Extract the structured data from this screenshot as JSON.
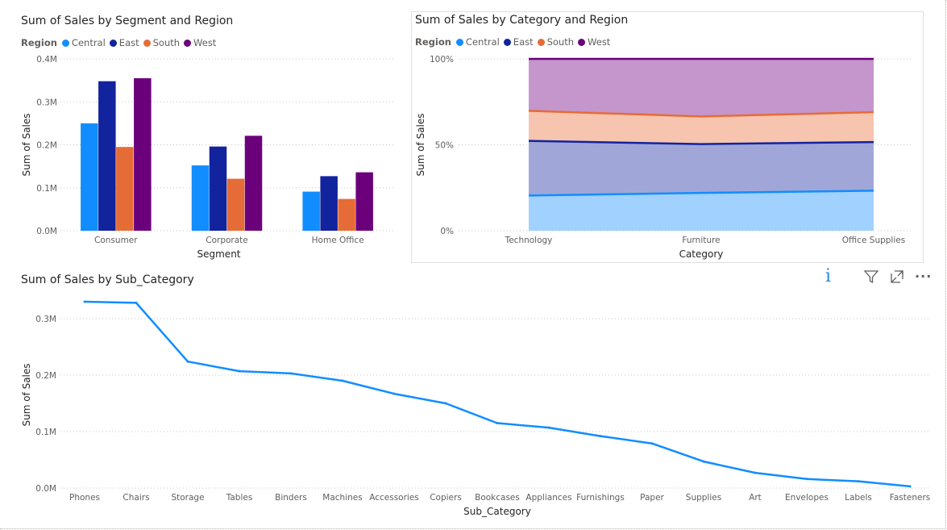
{
  "colors": {
    "central": "#118DFF",
    "east": "#12239E",
    "south": "#E66C37",
    "west": "#6B007B",
    "central_area": "#A0D1FF",
    "east_area": "#A0A7D8",
    "south_area": "#F6C4AF",
    "west_area": "#C496CB",
    "grid": "#c8c6c4"
  },
  "legend": {
    "title": "Region",
    "items": [
      "Central",
      "East",
      "South",
      "West"
    ]
  },
  "header": {
    "icons": [
      "info-icon",
      "filter-icon",
      "focus-mode-icon",
      "more-options-icon"
    ],
    "info_glyph": "i",
    "more_glyph": "···"
  },
  "chart_data": [
    {
      "type": "bar",
      "title": "Sum of Sales by Segment and Region",
      "xlabel": "Segment",
      "ylabel": "Sum of Sales",
      "categories": [
        "Consumer",
        "Corporate",
        "Home Office"
      ],
      "ylim": [
        0,
        0.4
      ],
      "yticks": [
        0,
        0.1,
        0.2,
        0.3,
        0.4
      ],
      "ytick_labels": [
        "0.0M",
        "0.1M",
        "0.2M",
        "0.3M",
        "0.4M"
      ],
      "legend_position": "top-left",
      "grid": true,
      "series": [
        {
          "name": "Central",
          "values": [
            0.25,
            0.152,
            0.091
          ]
        },
        {
          "name": "East",
          "values": [
            0.348,
            0.196,
            0.127
          ]
        },
        {
          "name": "South",
          "values": [
            0.195,
            0.121,
            0.074
          ]
        },
        {
          "name": "West",
          "values": [
            0.355,
            0.221,
            0.136
          ]
        }
      ]
    },
    {
      "type": "area",
      "stacking": "percent",
      "title": "Sum of Sales by Category and Region",
      "xlabel": "Category",
      "ylabel": "Sum of Sales",
      "categories": [
        "Technology",
        "Furniture",
        "Office Supplies"
      ],
      "ylim": [
        0,
        100
      ],
      "yticks": [
        0,
        50,
        100
      ],
      "ytick_labels": [
        "0%",
        "50%",
        "100%"
      ],
      "legend_position": "top-left",
      "grid": true,
      "series": [
        {
          "name": "Central",
          "values": [
            20.5,
            22.0,
            23.3
          ]
        },
        {
          "name": "East",
          "values": [
            31.8,
            28.4,
            28.3
          ]
        },
        {
          "name": "South",
          "values": [
            17.5,
            16.1,
            17.4
          ]
        },
        {
          "name": "West",
          "values": [
            30.2,
            33.5,
            31.0
          ]
        }
      ]
    },
    {
      "type": "line",
      "title": "Sum of Sales by Sub_Category",
      "xlabel": "Sub_Category",
      "ylabel": "Sum of Sales",
      "categories": [
        "Phones",
        "Chairs",
        "Storage",
        "Tables",
        "Binders",
        "Machines",
        "Accessories",
        "Copiers",
        "Bookcases",
        "Appliances",
        "Furnishings",
        "Paper",
        "Supplies",
        "Art",
        "Envelopes",
        "Labels",
        "Fasteners"
      ],
      "ylim": [
        0,
        0.33
      ],
      "yticks": [
        0,
        0.1,
        0.2,
        0.3
      ],
      "ytick_labels": [
        "0.0M",
        "0.1M",
        "0.2M",
        "0.3M"
      ],
      "grid": true,
      "series": [
        {
          "name": "Sum of Sales",
          "values": [
            0.33,
            0.328,
            0.224,
            0.207,
            0.203,
            0.19,
            0.167,
            0.15,
            0.115,
            0.107,
            0.092,
            0.079,
            0.047,
            0.027,
            0.016,
            0.012,
            0.003
          ]
        }
      ]
    }
  ]
}
